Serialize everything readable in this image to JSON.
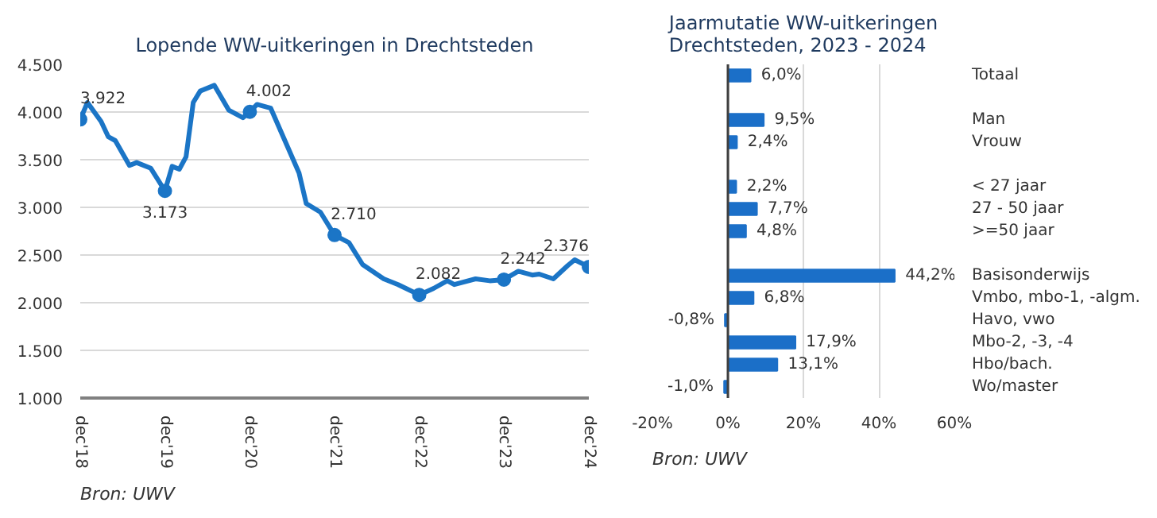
{
  "chart_data": [
    {
      "type": "line",
      "title": "Lopende WW-uitkeringen in Drechtsteden",
      "annotations": [
        "Bron: UWV"
      ],
      "x": [
        "2018-12",
        "2019-01",
        "2019-03",
        "2019-04",
        "2019-05",
        "2019-07",
        "2019-08",
        "2019-10",
        "2019-12",
        "2020-01",
        "2020-02",
        "2020-03",
        "2020-04",
        "2020-05",
        "2020-07",
        "2020-09",
        "2020-11",
        "2020-12",
        "2021-01",
        "2021-03",
        "2021-05",
        "2021-07",
        "2021-08",
        "2021-10",
        "2021-12",
        "2022-02",
        "2022-04",
        "2022-07",
        "2022-09",
        "2022-12",
        "2023-02",
        "2023-04",
        "2023-05",
        "2023-08",
        "2023-10",
        "2023-12",
        "2024-02",
        "2024-04",
        "2024-05",
        "2024-07",
        "2024-09",
        "2024-10",
        "2024-12"
      ],
      "series": [
        {
          "color": "#1b75c6",
          "values": [
            3922,
            4100,
            3900,
            3740,
            3700,
            3440,
            3470,
            3410,
            3173,
            3430,
            3400,
            3530,
            4100,
            4220,
            4280,
            4020,
            3940,
            4002,
            4080,
            4040,
            3700,
            3360,
            3040,
            2950,
            2710,
            2630,
            2400,
            2250,
            2190,
            2082,
            2150,
            2230,
            2190,
            2250,
            2230,
            2242,
            2330,
            2290,
            2300,
            2250,
            2390,
            2450,
            2376
          ],
          "value_labels": [
            "3.922",
            null,
            null,
            null,
            null,
            null,
            null,
            null,
            "3.173",
            null,
            null,
            null,
            null,
            null,
            null,
            null,
            null,
            "4.002",
            null,
            null,
            null,
            null,
            null,
            null,
            "2.710",
            null,
            null,
            null,
            null,
            "2.082",
            null,
            null,
            null,
            null,
            null,
            "2.242",
            null,
            null,
            null,
            null,
            null,
            null,
            "2.376"
          ]
        }
      ],
      "xlim": [
        "2018-12",
        "2024-12"
      ],
      "xticks": [
        {
          "value": "2018-12",
          "label": "dec'18"
        },
        {
          "value": "2019-12",
          "label": "dec'19"
        },
        {
          "value": "2020-12",
          "label": "dec'20"
        },
        {
          "value": "2021-12",
          "label": "dec'21"
        },
        {
          "value": "2022-12",
          "label": "dec'22"
        },
        {
          "value": "2023-12",
          "label": "dec'23"
        },
        {
          "value": "2024-12",
          "label": "dec'24"
        }
      ],
      "ylim": [
        1000,
        4500
      ],
      "yticks": [
        {
          "value": 1000,
          "label": "1.000"
        },
        {
          "value": 1500,
          "label": "1.500"
        },
        {
          "value": 2000,
          "label": "2.000"
        },
        {
          "value": 2500,
          "label": "2.500"
        },
        {
          "value": 3000,
          "label": "3.000"
        },
        {
          "value": 3500,
          "label": "3.500"
        },
        {
          "value": 4000,
          "label": "4.000"
        },
        {
          "value": 4500,
          "label": "4.500"
        }
      ],
      "grid": "y"
    },
    {
      "type": "bar",
      "orientation": "horizontal",
      "title": "Jaarmutatie WW-uitkeringen\nDrechtsteden, 2023 - 2024",
      "annotations": [
        "Bron: UWV"
      ],
      "categories": [
        "Totaal",
        null,
        "Man",
        "Vrouw",
        null,
        "< 27 jaar",
        "27 - 50 jaar",
        ">=50 jaar",
        null,
        "Basisonderwijs",
        "Vmbo, mbo-1, -algm.",
        "Havo, vwo",
        "Mbo-2, -3, -4",
        "Hbo/bach.",
        "Wo/master"
      ],
      "values": [
        6.0,
        null,
        9.5,
        2.4,
        null,
        2.2,
        7.7,
        4.8,
        null,
        44.2,
        6.8,
        -0.8,
        17.9,
        13.1,
        -1.0
      ],
      "value_labels": [
        "6,0%",
        null,
        "9,5%",
        "2,4%",
        null,
        "2,2%",
        "7,7%",
        "4,8%",
        null,
        "44,2%",
        "6,8%",
        "-0,8%",
        "17,9%",
        "13,1%",
        "-1,0%"
      ],
      "color": "#1b6fc8",
      "xlim": [
        -20,
        60
      ],
      "xticks": [
        {
          "value": -20,
          "label": "-20%"
        },
        {
          "value": 0,
          "label": "0%"
        },
        {
          "value": 20,
          "label": "20%"
        },
        {
          "value": 40,
          "label": "40%"
        },
        {
          "value": 60,
          "label": "60%"
        }
      ],
      "grid": "x"
    }
  ]
}
